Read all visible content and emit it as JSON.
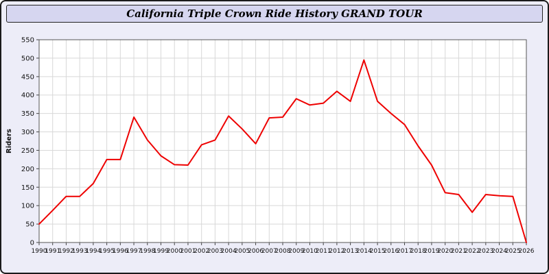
{
  "header": {
    "title": "California Triple Crown Ride History GRAND TOUR"
  },
  "chart_data": {
    "type": "line",
    "title": "California Triple Crown Ride History GRAND TOUR",
    "xlabel": "",
    "ylabel": "Riders",
    "ylim": [
      0,
      550
    ],
    "ytick_step": 50,
    "grid": true,
    "legend_position": "none",
    "line_color": "#ee0000",
    "plot_background": "#ffffff",
    "page_background": "#ededf8",
    "x": [
      1990,
      1991,
      1992,
      1993,
      1994,
      1995,
      1996,
      1997,
      1998,
      1999,
      2000,
      2001,
      2002,
      2003,
      2004,
      2005,
      2006,
      2007,
      2008,
      2009,
      2010,
      2011,
      2012,
      2013,
      2014,
      2015,
      2016,
      2017,
      2018,
      2019,
      2020,
      2021,
      2022,
      2023,
      2024,
      2025,
      2026
    ],
    "series": [
      {
        "name": "Riders",
        "values": [
          50,
          87,
          125,
          125,
          160,
          225,
          225,
          340,
          278,
          235,
          211,
          210,
          265,
          278,
          343,
          308,
          268,
          338,
          340,
          390,
          373,
          378,
          410,
          383,
          495,
          383,
          350,
          320,
          262,
          210,
          135,
          130,
          82,
          130,
          127,
          125,
          0
        ]
      }
    ]
  }
}
